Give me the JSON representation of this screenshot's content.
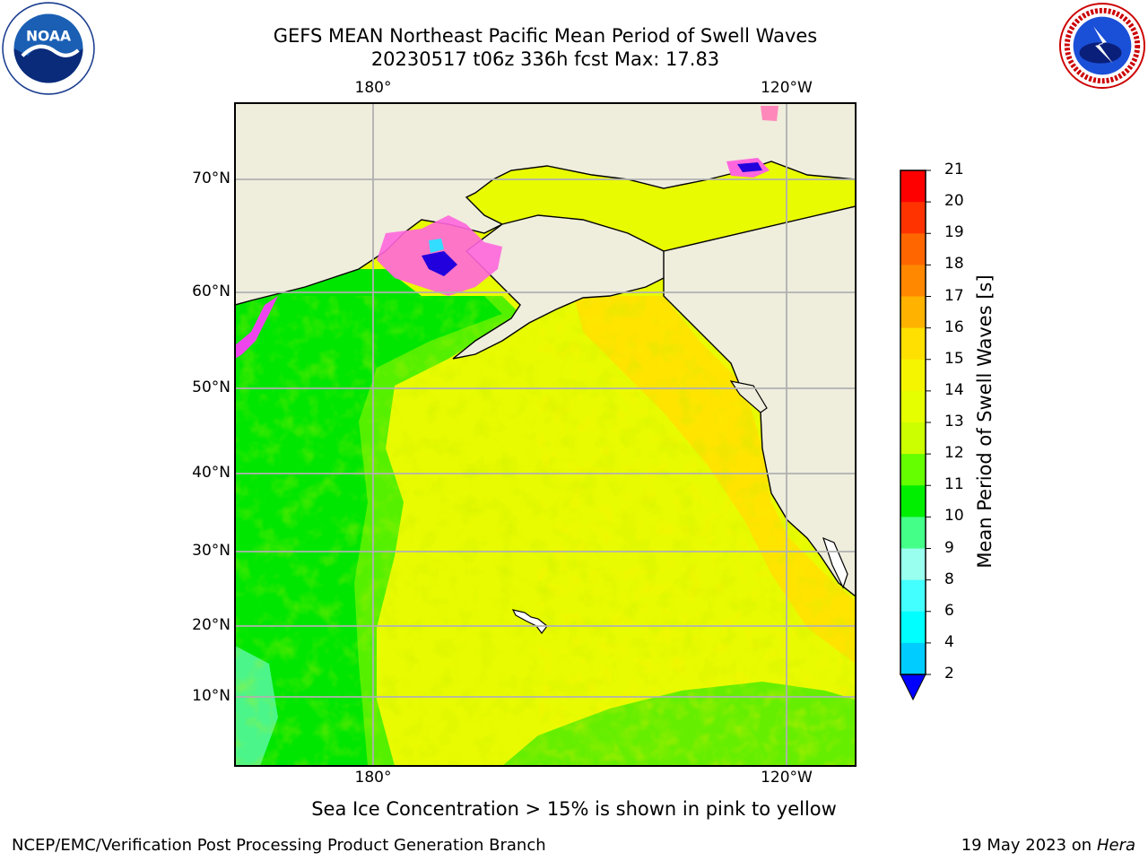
{
  "title": {
    "line1": "GEFS MEAN Northeast Pacific Mean Period of Swell Waves",
    "line2": "20230517 t06z 336h fcst   Max: 17.83"
  },
  "logos": {
    "left": "noaa-logo",
    "right": "nws-logo"
  },
  "map": {
    "lon_labels_top": [
      "180°",
      "120°W"
    ],
    "lon_labels_bottom": [
      "180°",
      "120°W"
    ],
    "lat_labels": [
      "70°N",
      "60°N",
      "50°N",
      "40°N",
      "30°N",
      "20°N",
      "10°N"
    ],
    "colors": {
      "land": "#efeddc",
      "coast": "#000000",
      "grid": "#b0b0b0",
      "ice": "#ff66cc"
    }
  },
  "colorbar": {
    "label": "Mean Period of Swell Waves [s]",
    "ticks": [
      "21",
      "20",
      "19",
      "18",
      "17",
      "16",
      "15",
      "14",
      "13",
      "12",
      "11",
      "10",
      "9",
      "8",
      "6",
      "4",
      "2"
    ],
    "colors": [
      "#ff0000",
      "#ff3300",
      "#ff6600",
      "#ff8800",
      "#ffb300",
      "#ffe000",
      "#f5f500",
      "#e6ff00",
      "#ccff00",
      "#66ff00",
      "#00ee00",
      "#44ff88",
      "#99ffee",
      "#44ffff",
      "#00ffff",
      "#00ccff",
      "#0077ff"
    ],
    "extend_color": "#0000ff"
  },
  "footnote": "Sea Ice Concentration > 15% is shown in pink to yellow",
  "credit_left": "NCEP/EMC/Verification Post Processing Product Generation Branch",
  "credit_date": "19 May 2023 on",
  "credit_machine": "Hera"
}
